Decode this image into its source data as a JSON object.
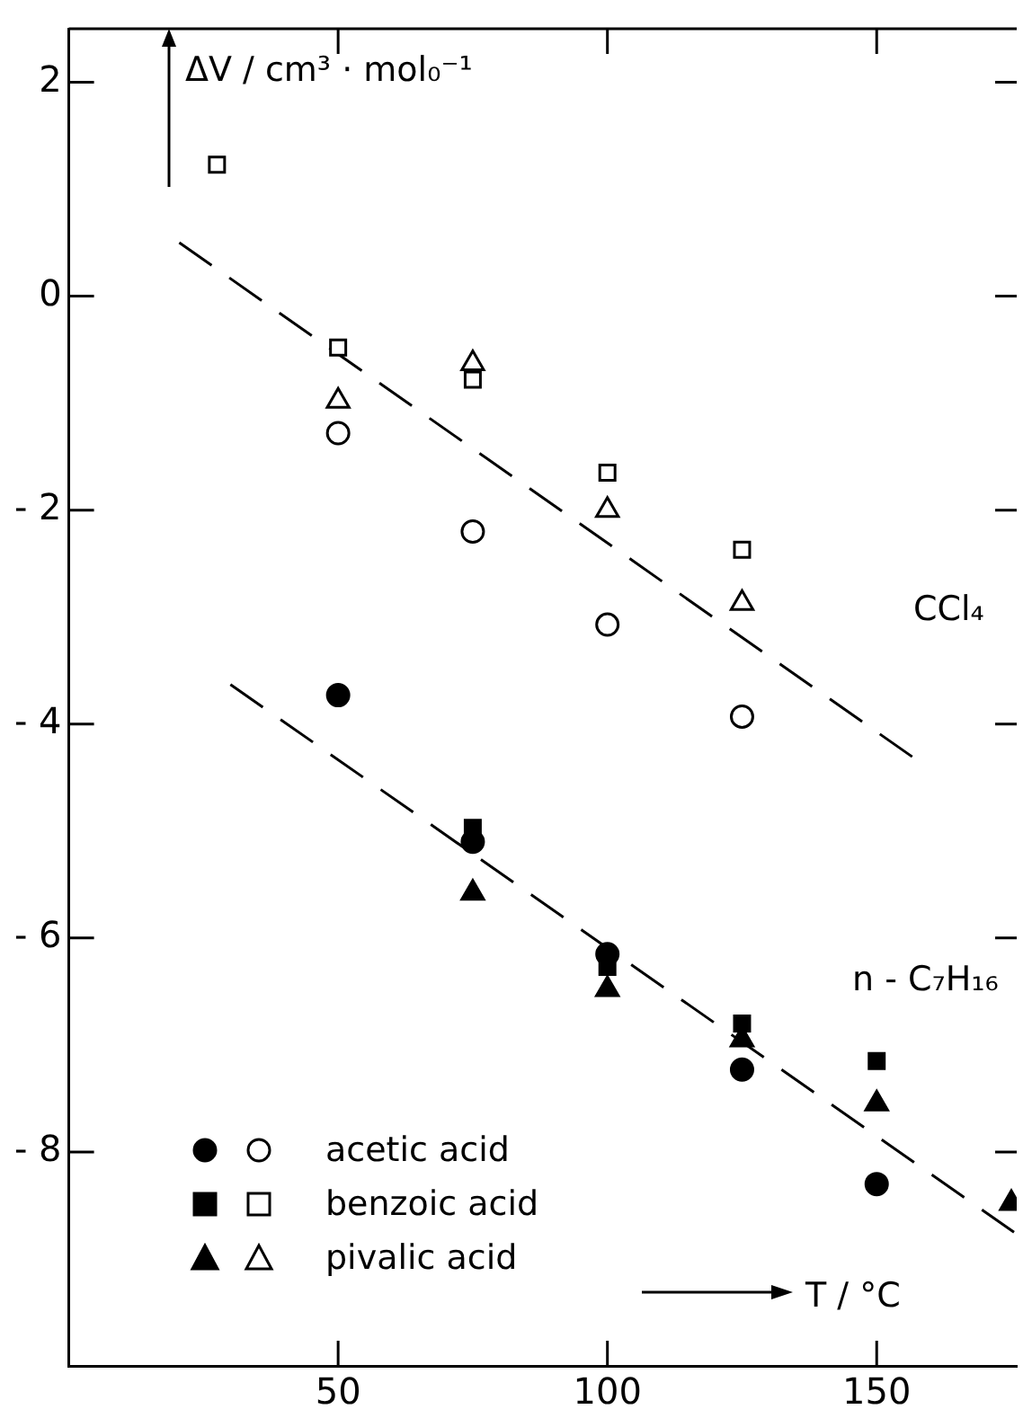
{
  "chart_data": {
    "type": "scatter",
    "ylabel": "ΔV / cm³ · mol₀⁻¹",
    "xlabel": "T / °C",
    "xlim": [
      0,
      176
    ],
    "xticks": [
      50,
      100,
      150
    ],
    "ylim": [
      -10,
      2.5
    ],
    "yticks": [
      2,
      0,
      -2,
      -4,
      -6,
      -8
    ],
    "grid": false,
    "legend": "bottom left",
    "series": [
      {
        "color": "#000000",
        "marker": "circle",
        "x": [
          50,
          75,
          100,
          125,
          150
        ],
        "values": [
          -3.73,
          -5.1,
          -6.15,
          -7.23,
          -8.3
        ]
      },
      {
        "name": "acetic acid",
        "color": "#ffffff",
        "marker": "circle",
        "x": [
          50,
          75,
          100,
          125
        ],
        "values": [
          -1.28,
          -2.2,
          -3.07,
          -3.93
        ]
      },
      {
        "color": "#000000",
        "marker": "square",
        "x": [
          75,
          100,
          125,
          150
        ],
        "values": [
          -4.97,
          -6.27,
          -6.8,
          -7.15
        ]
      },
      {
        "name": "benzoic acid",
        "color": "#ffffff",
        "marker": "square",
        "x": [
          27.5,
          50,
          75,
          100,
          125
        ],
        "values": [
          1.23,
          -0.48,
          -0.78,
          -1.65,
          -2.37
        ]
      },
      {
        "color": "#000000",
        "marker": "triangle",
        "x": [
          75,
          100,
          125,
          150,
          175
        ],
        "values": [
          -5.58,
          -6.48,
          -6.95,
          -7.55,
          -8.48
        ]
      },
      {
        "name": "pivalic acid",
        "color": "#ffffff",
        "marker": "triangle",
        "x": [
          50,
          75,
          100,
          125
        ],
        "values": [
          -0.98,
          -0.63,
          -2.0,
          -2.87
        ]
      },
      {
        "type": "line",
        "color": "#000000",
        "line_style": "dashed",
        "marker": "none",
        "x": [
          20.5,
          157
        ],
        "values": [
          0.5,
          -4.32
        ]
      },
      {
        "type": "line",
        "color": "#000000",
        "line_style": "dashed",
        "marker": "none",
        "x": [
          30,
          175.5
        ],
        "values": [
          -3.63,
          -8.75
        ]
      }
    ],
    "annotations": [
      "CCl₄",
      "n - C₇H₁₆"
    ]
  }
}
